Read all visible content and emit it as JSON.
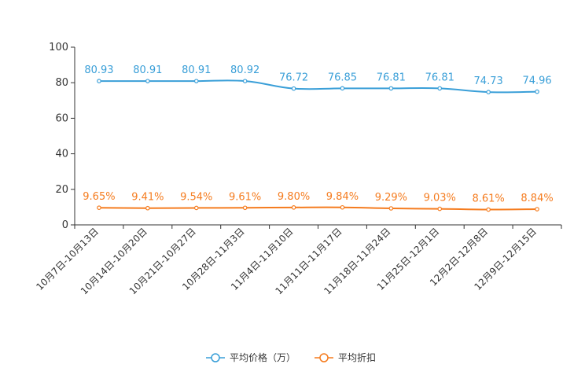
{
  "chart_data": {
    "type": "line",
    "title": "",
    "xlabel": "",
    "ylabel": "",
    "ylim": [
      0,
      100
    ],
    "yticks": [
      0,
      20,
      40,
      60,
      80,
      100
    ],
    "categories": [
      "10月7日-10月13日",
      "10月14日-10月20日",
      "10月21日-10月27日",
      "10月28日-11月3日",
      "11月4日-11月10日",
      "11月11日-11月17日",
      "11月18日-11月24日",
      "11月25日-12月1日",
      "12月2日-12月8日",
      "12月9日-12月15日"
    ],
    "series": [
      {
        "name": "平均价格（万）",
        "color": "#3a9fd8",
        "values": [
          80.93,
          80.91,
          80.91,
          80.92,
          76.72,
          76.85,
          76.81,
          76.81,
          74.73,
          74.96
        ],
        "labels": [
          "80.93",
          "80.91",
          "80.91",
          "80.92",
          "76.72",
          "76.85",
          "76.81",
          "76.81",
          "74.73",
          "74.96"
        ]
      },
      {
        "name": "平均折扣",
        "color": "#f57c1f",
        "values": [
          9.65,
          9.41,
          9.54,
          9.61,
          9.8,
          9.84,
          9.29,
          9.03,
          8.61,
          8.84
        ],
        "labels": [
          "9.65%",
          "9.41%",
          "9.54%",
          "9.61%",
          "9.80%",
          "9.84%",
          "9.29%",
          "9.03%",
          "8.61%",
          "8.84%"
        ]
      }
    ],
    "legend_position": "bottom-center",
    "grid": false
  }
}
